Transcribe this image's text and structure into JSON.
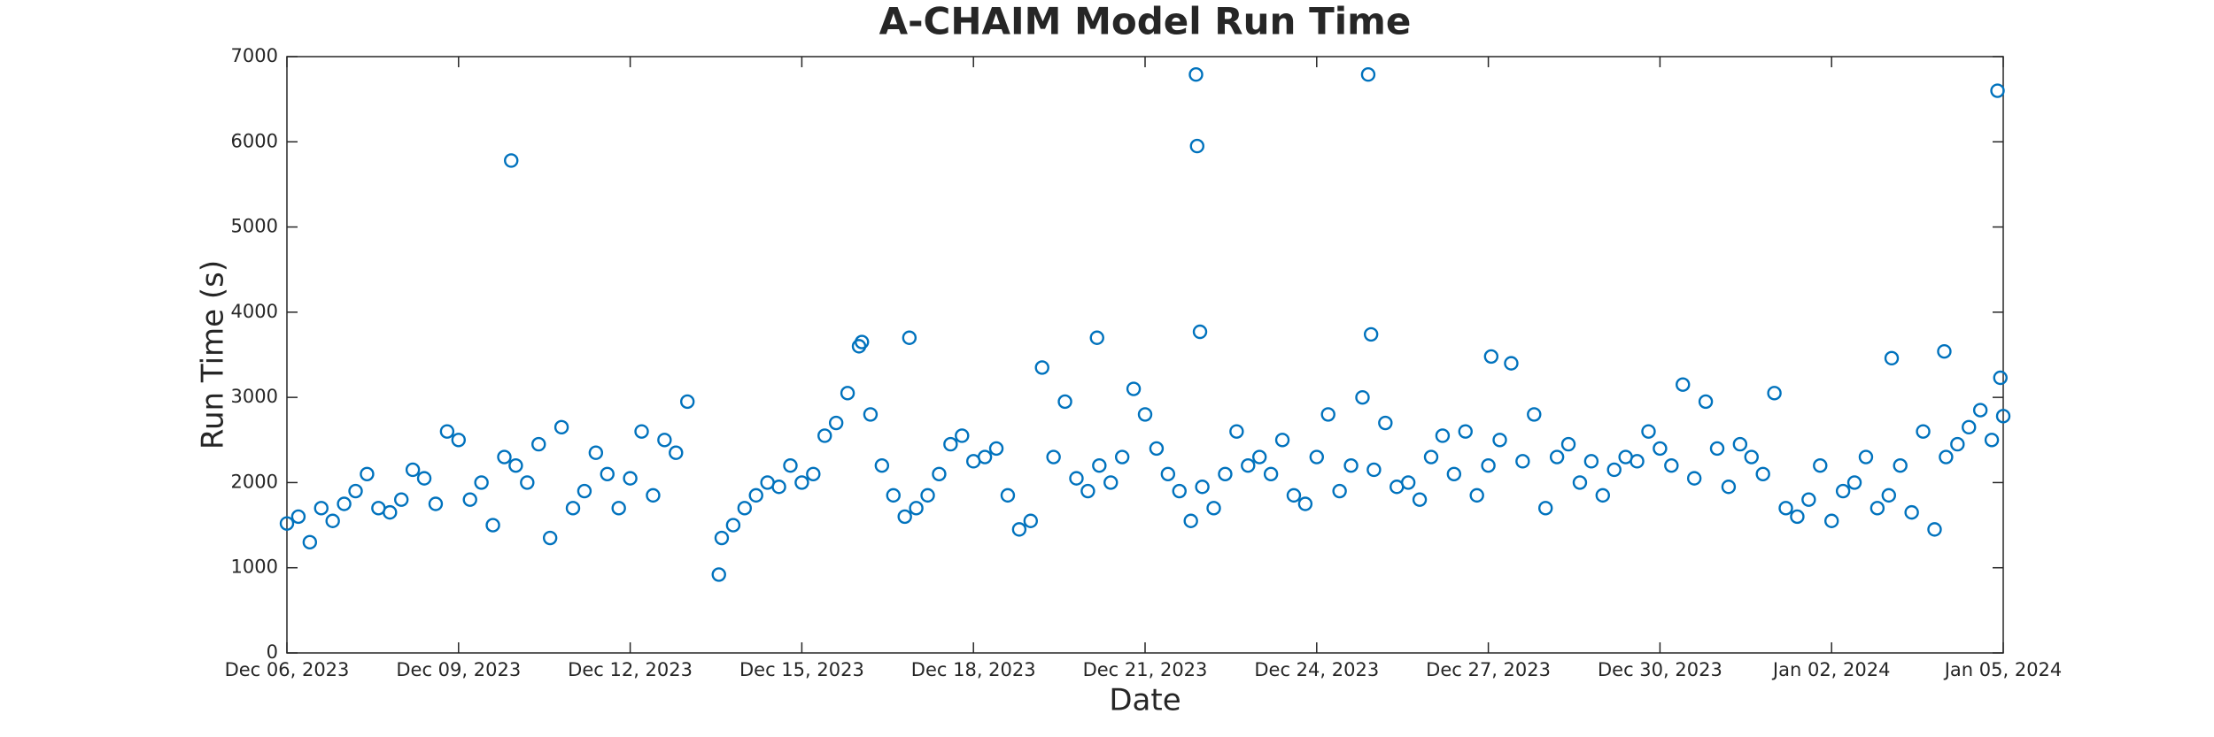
{
  "chart_data": {
    "type": "scatter",
    "title": "A-CHAIM Model Run Time",
    "xlabel": "Date",
    "ylabel": "Run Time (s)",
    "xlim": [
      0,
      30
    ],
    "ylim": [
      0,
      7000
    ],
    "xticks": [
      {
        "value": 0,
        "label": "Dec 06, 2023"
      },
      {
        "value": 3,
        "label": "Dec 09, 2023"
      },
      {
        "value": 6,
        "label": "Dec 12, 2023"
      },
      {
        "value": 9,
        "label": "Dec 15, 2023"
      },
      {
        "value": 12,
        "label": "Dec 18, 2023"
      },
      {
        "value": 15,
        "label": "Dec 21, 2023"
      },
      {
        "value": 18,
        "label": "Dec 24, 2023"
      },
      {
        "value": 21,
        "label": "Dec 27, 2023"
      },
      {
        "value": 24,
        "label": "Dec 30, 2023"
      },
      {
        "value": 27,
        "label": "Jan 02, 2024"
      },
      {
        "value": 30,
        "label": "Jan 05, 2024"
      }
    ],
    "yticks": [
      0,
      1000,
      2000,
      3000,
      4000,
      5000,
      6000,
      7000
    ],
    "grid": false,
    "color": "#0072bd",
    "x": [
      0,
      0.2,
      0.4,
      0.6,
      0.8,
      1,
      1.2,
      1.4,
      1.6,
      1.8,
      2,
      2.2,
      2.4,
      2.6,
      2.8,
      3,
      3.2,
      3.4,
      3.6,
      3.8,
      4,
      4.2,
      4.4,
      4.6,
      4.8,
      5,
      5.2,
      5.4,
      5.6,
      5.8,
      6,
      6.2,
      6.4,
      6.6,
      6.8,
      7,
      7.6,
      7.8,
      8,
      8.2,
      8.4,
      8.6,
      8.8,
      9,
      9.2,
      9.4,
      9.6,
      9.8,
      10,
      10.2,
      10.4,
      10.6,
      10.8,
      11,
      11.2,
      11.4,
      11.6,
      11.8,
      12,
      12.2,
      12.4,
      12.6,
      12.8,
      13,
      13.2,
      13.4,
      13.6,
      13.8,
      14,
      14.2,
      14.4,
      14.6,
      14.8,
      15,
      15.2,
      15.4,
      15.6,
      15.8,
      16,
      16.2,
      16.4,
      16.6,
      16.8,
      17,
      17.2,
      17.4,
      17.6,
      17.8,
      18,
      18.2,
      18.4,
      18.6,
      18.8,
      19,
      19.2,
      19.4,
      19.6,
      19.8,
      20,
      20.2,
      20.4,
      20.6,
      20.8,
      21,
      21.2,
      21.4,
      21.6,
      21.8,
      22,
      22.2,
      22.4,
      22.6,
      22.8,
      23,
      23.2,
      23.4,
      23.6,
      23.8,
      24,
      24.2,
      24.4,
      24.6,
      24.8,
      25,
      25.2,
      25.4,
      25.6,
      25.8,
      26,
      26.2,
      26.4,
      26.6,
      26.8,
      27,
      27.2,
      27.4,
      27.6,
      27.8,
      28,
      28.2,
      28.4,
      28.6,
      28.8,
      29,
      29.2,
      29.4,
      29.6,
      29.8,
      3.92,
      7.55,
      10.05,
      10.88,
      14.16,
      15.89,
      15.91,
      15.96,
      18.9,
      18.95,
      21.05,
      28.05,
      28.97,
      29.9,
      30,
      29.95
    ],
    "values": [
      1520,
      1600,
      1300,
      1700,
      1550,
      1750,
      1900,
      2100,
      1700,
      1650,
      1800,
      2150,
      2050,
      1750,
      2600,
      2500,
      1800,
      2000,
      1500,
      2300,
      2200,
      2000,
      2450,
      1350,
      2650,
      1700,
      1900,
      2350,
      2100,
      1700,
      2050,
      2600,
      1850,
      2500,
      2350,
      2950,
      1350,
      1500,
      1700,
      1850,
      2000,
      1950,
      2200,
      2000,
      2100,
      2550,
      2700,
      3050,
      3600,
      2800,
      2200,
      1850,
      1600,
      1700,
      1850,
      2100,
      2450,
      2550,
      2250,
      2300,
      2400,
      1850,
      1450,
      1550,
      3350,
      2300,
      2950,
      2050,
      1900,
      2200,
      2000,
      2300,
      3100,
      2800,
      2400,
      2100,
      1900,
      1550,
      1950,
      1700,
      2100,
      2600,
      2200,
      2300,
      2100,
      2500,
      1850,
      1750,
      2300,
      2800,
      1900,
      2200,
      3000,
      2150,
      2700,
      1950,
      2000,
      1800,
      2300,
      2550,
      2100,
      2600,
      1850,
      2200,
      2500,
      3400,
      2250,
      2800,
      1700,
      2300,
      2450,
      2000,
      2250,
      1850,
      2150,
      2300,
      2250,
      2600,
      2400,
      2200,
      3150,
      2050,
      2950,
      2400,
      1950,
      2450,
      2300,
      2100,
      3050,
      1700,
      1600,
      1800,
      2200,
      1550,
      1900,
      2000,
      2300,
      1700,
      1850,
      2200,
      1650,
      2600,
      1450,
      2300,
      2450,
      2650,
      2850,
      2500,
      5780,
      920,
      3650,
      3700,
      3700,
      6790,
      5950,
      3770,
      6790,
      3740,
      3480,
      3460,
      3540,
      6600,
      2780,
      3230
    ]
  }
}
